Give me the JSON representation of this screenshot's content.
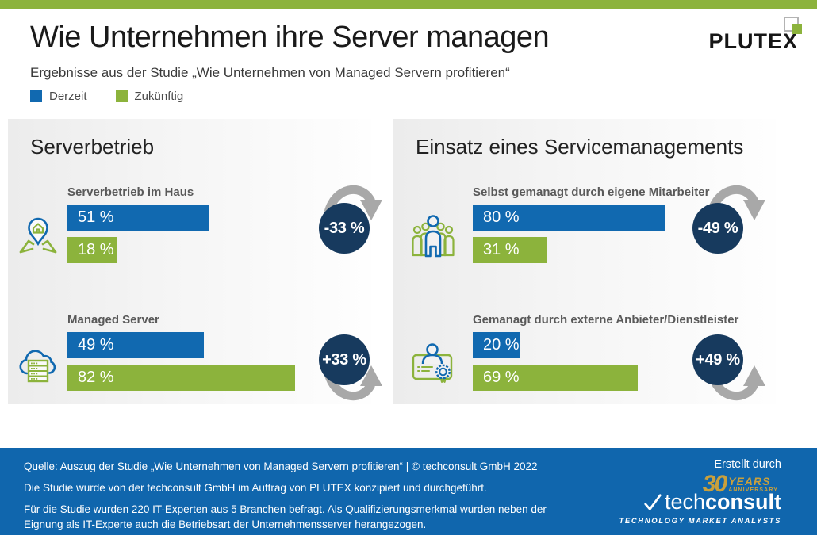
{
  "header": {
    "title": "Wie Unternehmen ihre Server managen",
    "subtitle": "Ergebnisse aus der Studie „Wie Unternehmen von Managed Servern profitieren“",
    "brand": "PLUTEX"
  },
  "legend": {
    "items": [
      {
        "label": "Derzeit",
        "color": "#1169B0"
      },
      {
        "label": "Zukünftig",
        "color": "#8CB33C"
      }
    ]
  },
  "panels": [
    {
      "title": "Serverbetrieb",
      "rows": [
        {
          "icon": "map-pin-house-icon",
          "label": "Serverbetrieb im Haus",
          "current": 51,
          "current_label": "51 %",
          "future": 18,
          "future_label": "18 %",
          "change": "-33 %",
          "direction": "down"
        },
        {
          "icon": "cloud-server-icon",
          "label": "Managed Server",
          "current": 49,
          "current_label": "49 %",
          "future": 82,
          "future_label": "82 %",
          "change": "+33 %",
          "direction": "up"
        }
      ]
    },
    {
      "title": "Einsatz eines Servicemanagements",
      "rows": [
        {
          "icon": "people-group-icon",
          "label": "Selbst gemanagt durch eigene Mitarbeiter",
          "current": 80,
          "current_label": "80 %",
          "future": 31,
          "future_label": "31 %",
          "change": "-49 %",
          "direction": "down"
        },
        {
          "icon": "id-card-badge-icon",
          "label": "Gemanagt durch externe Anbieter/Dienstleister",
          "current": 20,
          "current_label": "20 %",
          "future": 69,
          "future_label": "69 %",
          "change": "+49 %",
          "direction": "up"
        }
      ]
    }
  ],
  "footer": {
    "created_by": "Erstellt durch",
    "lines": [
      "Quelle: Auszug der Studie „Wie Unternehmen von Managed Servern profitieren“ | © techconsult GmbH 2022",
      "Die Studie wurde von der techconsult GmbH im Auftrag von PLUTEX konzipiert und durchgeführt.",
      "Für die Studie wurden 220 IT-Experten aus 5 Branchen befragt. Als Qualifizierungsmerkmal wurden neben der Eignung als IT-Experte auch die Betriebsart der Unternehmensserver herangezogen."
    ],
    "techconsult": {
      "years_number": "30",
      "years_label": "YEARS",
      "anniversary_label": "ANNIVERSARY",
      "name_light": "tech",
      "name_bold": "consult",
      "tagline": "TECHNOLOGY MARKET ANALYSTS"
    }
  },
  "colors": {
    "accent_green": "#8CB33C",
    "accent_blue": "#1169B0",
    "navy_circle": "#173A5E",
    "footer_blue": "#1066AD",
    "arrow_gray": "#A8A8A8",
    "anniversary_gold": "#C9A03C"
  },
  "chart_data": [
    {
      "type": "bar",
      "orientation": "horizontal",
      "title": "Serverbetrieb",
      "categories": [
        "Serverbetrieb im Haus",
        "Managed Server"
      ],
      "series": [
        {
          "name": "Derzeit",
          "values": [
            51,
            49
          ]
        },
        {
          "name": "Zukünftig",
          "values": [
            18,
            82
          ]
        }
      ],
      "unit": "%",
      "xlim": [
        0,
        100
      ],
      "grid": false,
      "legend_position": "top-left",
      "annotations": [
        {
          "category": "Serverbetrieb im Haus",
          "change": "-33 %",
          "direction": "down"
        },
        {
          "category": "Managed Server",
          "change": "+33 %",
          "direction": "up"
        }
      ]
    },
    {
      "type": "bar",
      "orientation": "horizontal",
      "title": "Einsatz eines Servicemanagements",
      "categories": [
        "Selbst gemanagt durch eigene Mitarbeiter",
        "Gemanagt durch externe Anbieter/Dienstleister"
      ],
      "series": [
        {
          "name": "Derzeit",
          "values": [
            80,
            20
          ]
        },
        {
          "name": "Zukünftig",
          "values": [
            31,
            69
          ]
        }
      ],
      "unit": "%",
      "xlim": [
        0,
        100
      ],
      "grid": false,
      "legend_position": "top-left",
      "annotations": [
        {
          "category": "Selbst gemanagt durch eigene Mitarbeiter",
          "change": "-49 %",
          "direction": "down"
        },
        {
          "category": "Gemanagt durch externe Anbieter/Dienstleister",
          "change": "+49 %",
          "direction": "up"
        }
      ]
    }
  ]
}
